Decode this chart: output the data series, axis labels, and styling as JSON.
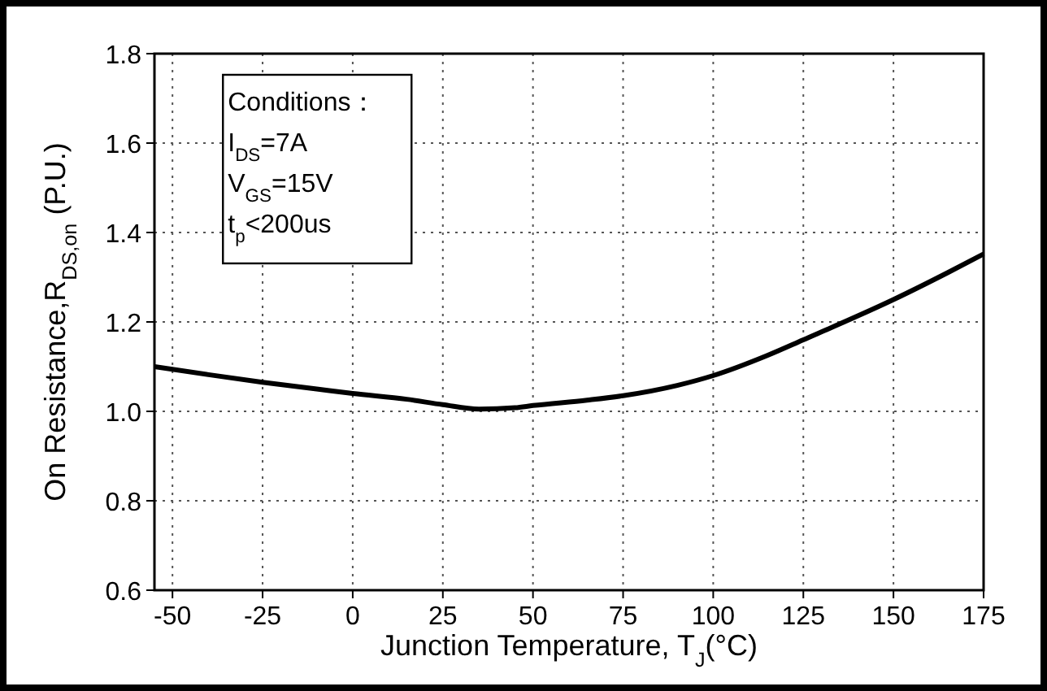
{
  "chart_data": {
    "type": "line",
    "xlabel": "Junction Temperature, T$_{J}$(°C)",
    "ylabel": "On Resistance,R$_{DS,on}$ (P.U.)",
    "x": [
      -55,
      -40,
      -25,
      -10,
      0,
      15,
      25,
      35,
      45,
      50,
      65,
      75,
      90,
      100,
      115,
      125,
      140,
      150,
      165,
      175
    ],
    "series": [
      {
        "color": "#000000",
        "values": [
          1.1,
          1.082,
          1.065,
          1.05,
          1.04,
          1.027,
          1.015,
          1.005,
          1.008,
          1.013,
          1.025,
          1.035,
          1.058,
          1.08,
          1.125,
          1.16,
          1.213,
          1.25,
          1.31,
          1.352
        ]
      }
    ],
    "xlim": [
      -55,
      175
    ],
    "xticks": [
      -50,
      -25,
      0,
      25,
      50,
      75,
      100,
      125,
      150,
      175
    ],
    "ylim": [
      0.6,
      1.8
    ],
    "yticks": [
      0.6,
      0.8,
      {
        "value": 1.0,
        "label": "1.0"
      },
      1.2,
      1.4,
      1.6,
      1.8
    ],
    "grid": true,
    "marker": "none",
    "line_style": "solid",
    "annotations": [
      "Conditions：",
      "I$_{DS}$=7A",
      "V$_{GS}$=15V",
      "t$_{p}$<200us"
    ]
  }
}
